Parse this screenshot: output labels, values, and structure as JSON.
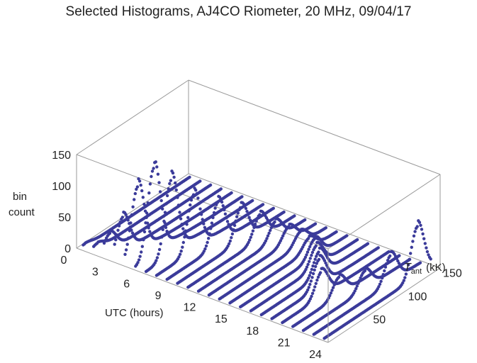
{
  "chart_data": {
    "type": "scatter",
    "title": "Selected Histograms, AJ4CO Riometer, 20 MHz, 09/04/17",
    "xlabel": "UTC (hours)",
    "ylabel_main": "T",
    "ylabel_sub": "ant",
    "ylabel_unit": "(kK)",
    "zlabel_line1": "bin",
    "zlabel_line2": "count",
    "x_ticks": [
      "0",
      "3",
      "6",
      "9",
      "12",
      "15",
      "18",
      "21",
      "24"
    ],
    "y_ticks": [
      "50",
      "100",
      "150"
    ],
    "z_ticks": [
      "0",
      "50",
      "100",
      "150"
    ],
    "xlim": [
      0,
      24
    ],
    "ylim": [
      0,
      160
    ],
    "zlim": [
      0,
      150
    ],
    "style": "3d-box",
    "color": "#3b3b9a",
    "series_hours": [
      0,
      1,
      2,
      3,
      4,
      5,
      6,
      7,
      8,
      9,
      10,
      11,
      12,
      13,
      14,
      15,
      16,
      17,
      18,
      19,
      20,
      21,
      22,
      23
    ],
    "peak_tant_kK": [
      5,
      7,
      10,
      14,
      20,
      28,
      38,
      55,
      75,
      93,
      105,
      112,
      116,
      118,
      115,
      108,
      96,
      85,
      70,
      58,
      68,
      90,
      112,
      135
    ],
    "peak_count": [
      5,
      10,
      30,
      60,
      110,
      140,
      120,
      90,
      70,
      55,
      40,
      30,
      25,
      22,
      20,
      30,
      35,
      40,
      45,
      40,
      30,
      30,
      45,
      80
    ]
  }
}
